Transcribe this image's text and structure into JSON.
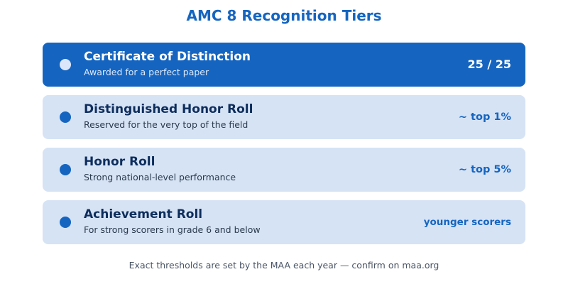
{
  "title": "AMC 8 Recognition Tiers",
  "tiers": [
    {
      "name": "Certificate of Distinction",
      "description": "Awarded for a perfect paper",
      "badge": "25 / 25"
    },
    {
      "name": "Distinguished Honor Roll",
      "description": "Reserved for the very top of the field",
      "badge": "~ top 1%"
    },
    {
      "name": "Honor Roll",
      "description": "Strong national-level performance",
      "badge": "~ top 5%"
    },
    {
      "name": "Achievement Roll",
      "description": "For strong scorers in grade 6 and below",
      "badge": "younger scorers"
    }
  ],
  "footnote": "Exact thresholds are set by the MAA each year — confirm on maa.org",
  "colors": {
    "accent": "#1565c0",
    "card_background": "#d6e3f5",
    "featured_background": "#1565c0"
  }
}
